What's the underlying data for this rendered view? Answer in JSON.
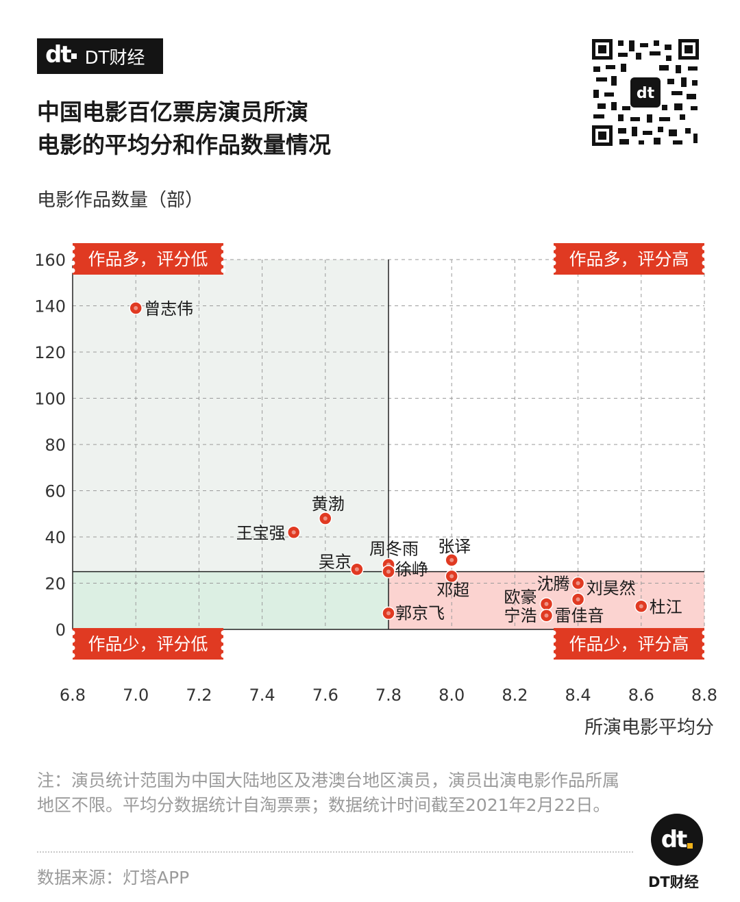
{
  "brand": {
    "name": "DT财经",
    "logo": "dt"
  },
  "title_line1": "中国电影百亿票房演员所演",
  "title_line2": "电影的平均分和作品数量情况",
  "qr_code": {
    "icon": "qr-code-icon"
  },
  "colors": {
    "accent": "#e03a22",
    "upper_left_fill": "#eef2ef",
    "lower_left_fill": "#dcefe3",
    "lower_right_fill": "#fbd3d0",
    "dot": "#e03a22"
  },
  "chart_data": {
    "type": "scatter",
    "xlabel": "所演电影平均分",
    "ylabel": "电影作品数量（部）",
    "xlim": [
      6.8,
      8.8
    ],
    "ylim": [
      0,
      160
    ],
    "x_ticks": [
      "6.8",
      "7.0",
      "7.2",
      "7.4",
      "7.6",
      "7.8",
      "8.0",
      "8.2",
      "8.4",
      "8.6",
      "8.8"
    ],
    "y_ticks": [
      "160",
      "140",
      "120",
      "100",
      "80",
      "60",
      "40",
      "20",
      "0"
    ],
    "grid": true,
    "x_divider": 7.8,
    "y_divider": 25,
    "quadrants": [
      {
        "label": "作品多，评分低",
        "position": "top-left"
      },
      {
        "label": "作品多，评分高",
        "position": "top-right"
      },
      {
        "label": "作品少，评分低",
        "position": "bottom-left"
      },
      {
        "label": "作品少，评分高",
        "position": "bottom-right"
      }
    ],
    "points": [
      {
        "name": "曾志伟",
        "x": 7.0,
        "y": 139
      },
      {
        "name": "黄渤",
        "x": 7.6,
        "y": 48
      },
      {
        "name": "王宝强",
        "x": 7.5,
        "y": 42
      },
      {
        "name": "吴京",
        "x": 7.7,
        "y": 26
      },
      {
        "name": "周冬雨",
        "x": 7.8,
        "y": 28
      },
      {
        "name": "徐峥",
        "x": 7.8,
        "y": 25
      },
      {
        "name": "郭京飞",
        "x": 7.8,
        "y": 7
      },
      {
        "name": "张译",
        "x": 8.0,
        "y": 30
      },
      {
        "name": "邓超",
        "x": 8.0,
        "y": 23
      },
      {
        "name": "沈腾",
        "x": 8.4,
        "y": 20
      },
      {
        "name": "刘昊然",
        "x": 8.4,
        "y": 13
      },
      {
        "name": "欧豪",
        "x": 8.3,
        "y": 11
      },
      {
        "name": "宁浩",
        "x": 8.3,
        "y": 6
      },
      {
        "name": "雷佳音",
        "x": 8.3,
        "y": 6
      },
      {
        "name": "杜江",
        "x": 8.6,
        "y": 10
      }
    ]
  },
  "note": "注：演员统计范围为中国大陆地区及港澳台地区演员，演员出演电影作品所属地区不限。平均分数据统计自淘票票；数据统计时间截至2021年2月22日。",
  "source": "数据来源：灯塔APP"
}
